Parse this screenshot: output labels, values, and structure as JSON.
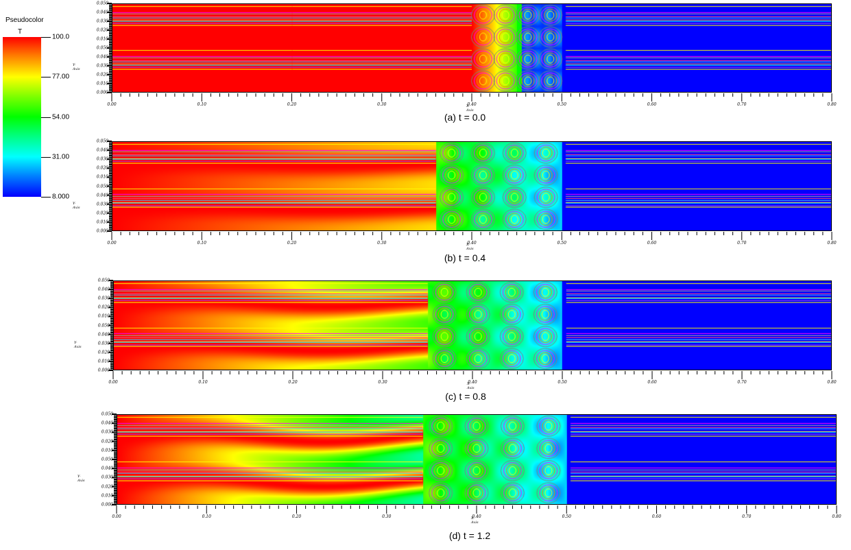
{
  "chart_data": {
    "type": "heatmap",
    "title": "",
    "legend": {
      "title": "Pseudocolor",
      "variable": "T",
      "placement": "left",
      "colormap": [
        "#0000ff",
        "#0080ff",
        "#00ffff",
        "#00ff80",
        "#00ff00",
        "#80ff00",
        "#ffff00",
        "#ff8000",
        "#ff0000"
      ],
      "range": [
        8.0,
        100.0
      ],
      "tick_labels": [
        "100.0",
        "77.00",
        "54.00",
        "31.00",
        "8.000"
      ],
      "tick_values": [
        100.0,
        77.0,
        54.0,
        31.0,
        8.0
      ]
    },
    "xlabel": "X-Axis",
    "ylabel": "Y-Axis",
    "xlim": [
      0.0,
      0.8
    ],
    "x_tick_labels": [
      "0.00",
      "0.10",
      "0.20",
      "0.30",
      "0.40",
      "0.50",
      "0.60",
      "0.70",
      "0.80"
    ],
    "y_tick_labels": [
      "0.000",
      "0.010",
      "0.020",
      "0.030",
      "0.040",
      "0.050",
      "0.010",
      "0.020",
      "0.030",
      "0.040",
      "0.050"
    ],
    "panels": [
      {
        "caption": "(a) t = 0.0",
        "time": 0.0,
        "hot_region_end_x": 0.4,
        "mixing_zone_x": [
          0.4,
          0.5
        ],
        "cold_region_start_x": 0.5,
        "description": "Sharp interface: T=100 for x<0.40, mixing pattern 0.40-0.50, T=8 for x>0.50"
      },
      {
        "caption": "(b) t = 0.4",
        "time": 0.4,
        "hot_region_end_x": 0.36,
        "mixing_zone_x": [
          0.36,
          0.5
        ],
        "cold_region_start_x": 0.5,
        "description": "Hot streaks extend to x≈0.36, cooling green/cyan between streaks"
      },
      {
        "caption": "(c) t = 0.8",
        "time": 0.8,
        "hot_region_end_x": 0.35,
        "mixing_zone_x": [
          0.35,
          0.5
        ],
        "cold_region_start_x": 0.5,
        "description": "Hot streaks narrower with wave near x≈0.22, green/yellow between streaks"
      },
      {
        "caption": "(d) t = 1.2",
        "time": 1.2,
        "hot_region_end_x": 0.34,
        "mixing_zone_x": [
          0.34,
          0.5
        ],
        "cold_region_start_x": 0.5,
        "description": "Hot streaks thinning, wave near x≈0.20, wider green/cyan regions"
      }
    ]
  }
}
